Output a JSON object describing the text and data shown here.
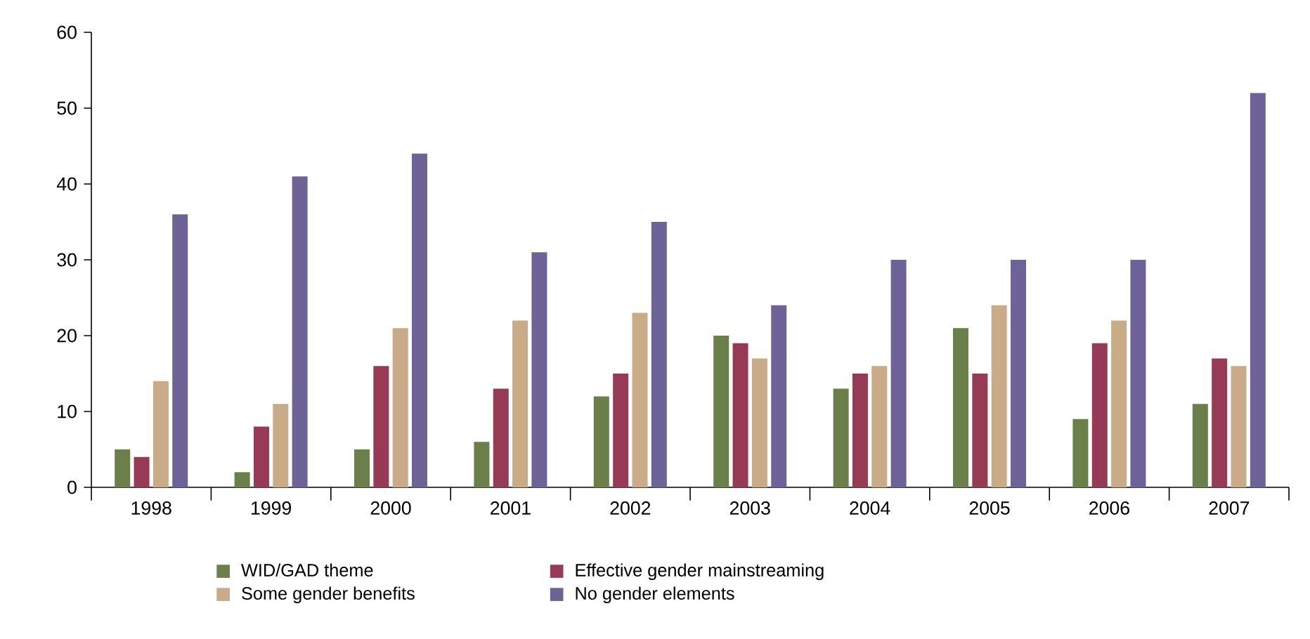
{
  "chart_data": {
    "type": "bar",
    "categories": [
      "1998",
      "1999",
      "2000",
      "2001",
      "2002",
      "2003",
      "2004",
      "2005",
      "2006",
      "2007"
    ],
    "series": [
      {
        "name": "WID/GAD theme",
        "color": "#6b7f4a",
        "values": [
          5,
          2,
          5,
          6,
          12,
          20,
          13,
          21,
          9,
          11
        ]
      },
      {
        "name": "Effective gender mainstreaming",
        "color": "#963a55",
        "values": [
          4,
          8,
          16,
          13,
          15,
          19,
          15,
          15,
          19,
          17
        ]
      },
      {
        "name": "Some gender benefits",
        "color": "#c9ab88",
        "values": [
          14,
          11,
          21,
          22,
          23,
          17,
          16,
          24,
          22,
          16
        ]
      },
      {
        "name": "No gender elements",
        "color": "#6e6396",
        "values": [
          36,
          41,
          44,
          31,
          35,
          24,
          30,
          30,
          30,
          52
        ]
      }
    ],
    "ylim": [
      0,
      60
    ],
    "yticks": [
      0,
      10,
      20,
      30,
      40,
      50,
      60
    ],
    "grid": false,
    "legend": "bottom"
  }
}
